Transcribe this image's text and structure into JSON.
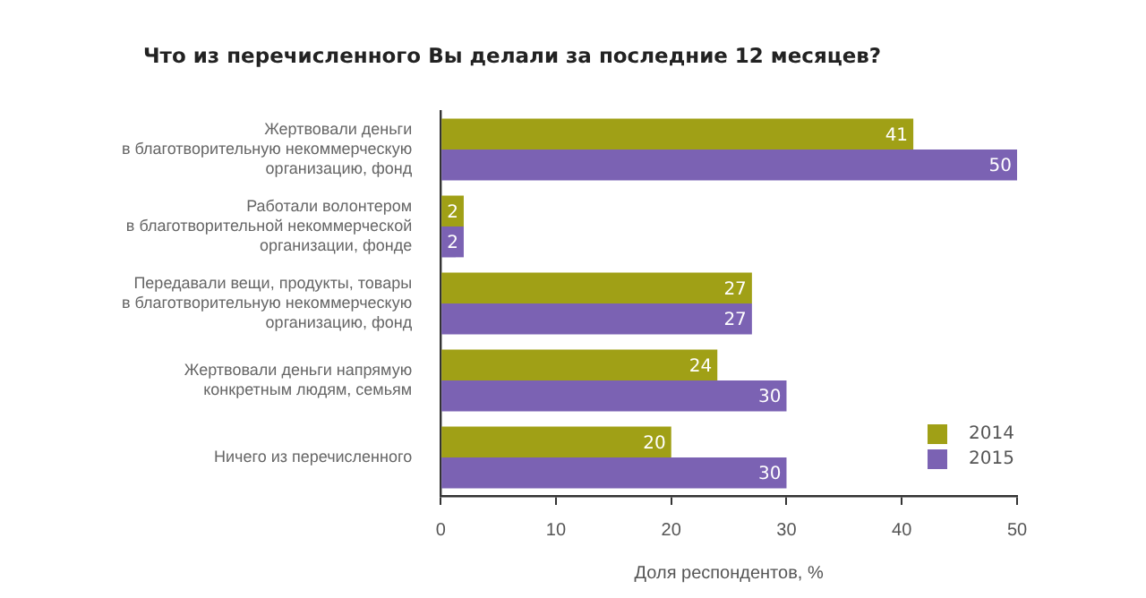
{
  "chart_data": {
    "type": "bar",
    "orientation": "horizontal",
    "title": "Что из перечисленного Вы делали за последние 12 месяцев?",
    "xlabel": "Доля респондентов, %",
    "categories": [
      "Жертвовали деньги\nв благотворительную некоммерческую\nорганизацию, фонд",
      "Работали волонтером\nв благотворительной некоммерческой\nорганизации, фонде",
      "Передавали вещи, продукты, товары\nв благотворительную некоммерческую\nорганизацию, фонд",
      "Жертвовали деньги напрямую\nконкретным людям, семьям",
      "Ничего из перечисленного"
    ],
    "series": [
      {
        "name": "2014",
        "color": "#a0a016",
        "values": [
          41,
          2,
          27,
          24,
          20
        ]
      },
      {
        "name": "2015",
        "color": "#7b62b3",
        "values": [
          50,
          2,
          27,
          30,
          30
        ]
      }
    ],
    "xlim": [
      0,
      50
    ],
    "xticks": [
      0,
      10,
      20,
      30,
      40,
      50
    ],
    "grid": false,
    "legend": "bottom right",
    "data_labels": true
  }
}
